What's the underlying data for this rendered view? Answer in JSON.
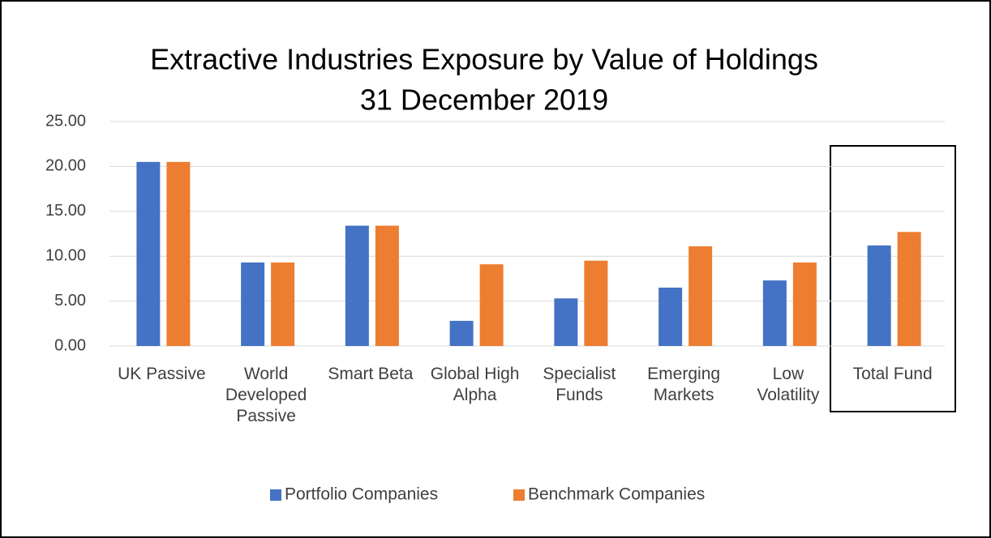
{
  "chart_data": {
    "type": "bar",
    "title": "Extractive Industries Exposure by Value of Holdings",
    "subtitle": "31 December 2019",
    "categories": [
      "UK Passive",
      "World Developed Passive",
      "Smart Beta",
      "Global High Alpha",
      "Specialist Funds",
      "Emerging Markets",
      "Low Volatility",
      "Total Fund"
    ],
    "series": [
      {
        "name": "Portfolio Companies",
        "color": "#4472c4",
        "values": [
          20.5,
          9.3,
          13.4,
          2.8,
          5.3,
          6.5,
          7.3,
          11.2
        ]
      },
      {
        "name": "Benchmark Companies",
        "color": "#ed7d31",
        "values": [
          20.5,
          9.3,
          13.4,
          9.1,
          9.5,
          11.1,
          9.3,
          12.7
        ]
      }
    ],
    "ylim": [
      0,
      25
    ],
    "yticks": [
      {
        "value": 0,
        "label": "0.00"
      },
      {
        "value": 5,
        "label": "5.00"
      },
      {
        "value": 10,
        "label": "10.00"
      },
      {
        "value": 15,
        "label": "15.00"
      },
      {
        "value": 20,
        "label": "20.00"
      },
      {
        "value": 25,
        "label": "25.00"
      }
    ],
    "grid": true,
    "legend": "bottom"
  }
}
